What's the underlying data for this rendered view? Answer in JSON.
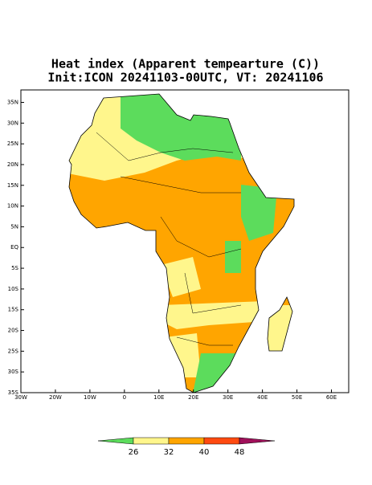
{
  "title": [
    "Heat index (Apparent tempearture (C))",
    "Init:ICON 20241103-00UTC, VT: 20241106"
  ],
  "map": {
    "xlim": [
      -30,
      65
    ],
    "ylim": [
      -35,
      38
    ],
    "xticks": [
      {
        "value": -30,
        "label": "30W"
      },
      {
        "value": -20,
        "label": "20W"
      },
      {
        "value": -10,
        "label": "10W"
      },
      0,
      {
        "value": 10,
        "label": "10E"
      },
      {
        "value": 20,
        "label": "20E"
      },
      {
        "value": 30,
        "label": "30E"
      },
      {
        "value": 40,
        "label": "40E"
      },
      {
        "value": 50,
        "label": "50E"
      },
      {
        "value": 60,
        "label": "60E"
      }
    ],
    "yticks": [
      {
        "value": 35,
        "label": "35N"
      },
      {
        "value": 30,
        "label": "30N"
      },
      {
        "value": 25,
        "label": "25N"
      },
      {
        "value": 20,
        "label": "20N"
      },
      {
        "value": 15,
        "label": "15N"
      },
      {
        "value": 10,
        "label": "10N"
      },
      {
        "value": 5,
        "label": "5N"
      },
      {
        "value": 0,
        "label": "EQ"
      },
      {
        "value": -5,
        "label": "5S"
      },
      {
        "value": -10,
        "label": "10S"
      },
      {
        "value": -15,
        "label": "15S"
      },
      {
        "value": -20,
        "label": "20S"
      },
      {
        "value": -25,
        "label": "25S"
      },
      {
        "value": -30,
        "label": "30S"
      },
      {
        "value": -35,
        "label": "35S"
      }
    ]
  },
  "colorbar": {
    "levels": [
      26,
      32,
      40,
      48
    ],
    "colors": [
      "#5cdc5c",
      "#fff68c",
      "#ffa500",
      "#ff4a10",
      "#a0105a"
    ]
  }
}
